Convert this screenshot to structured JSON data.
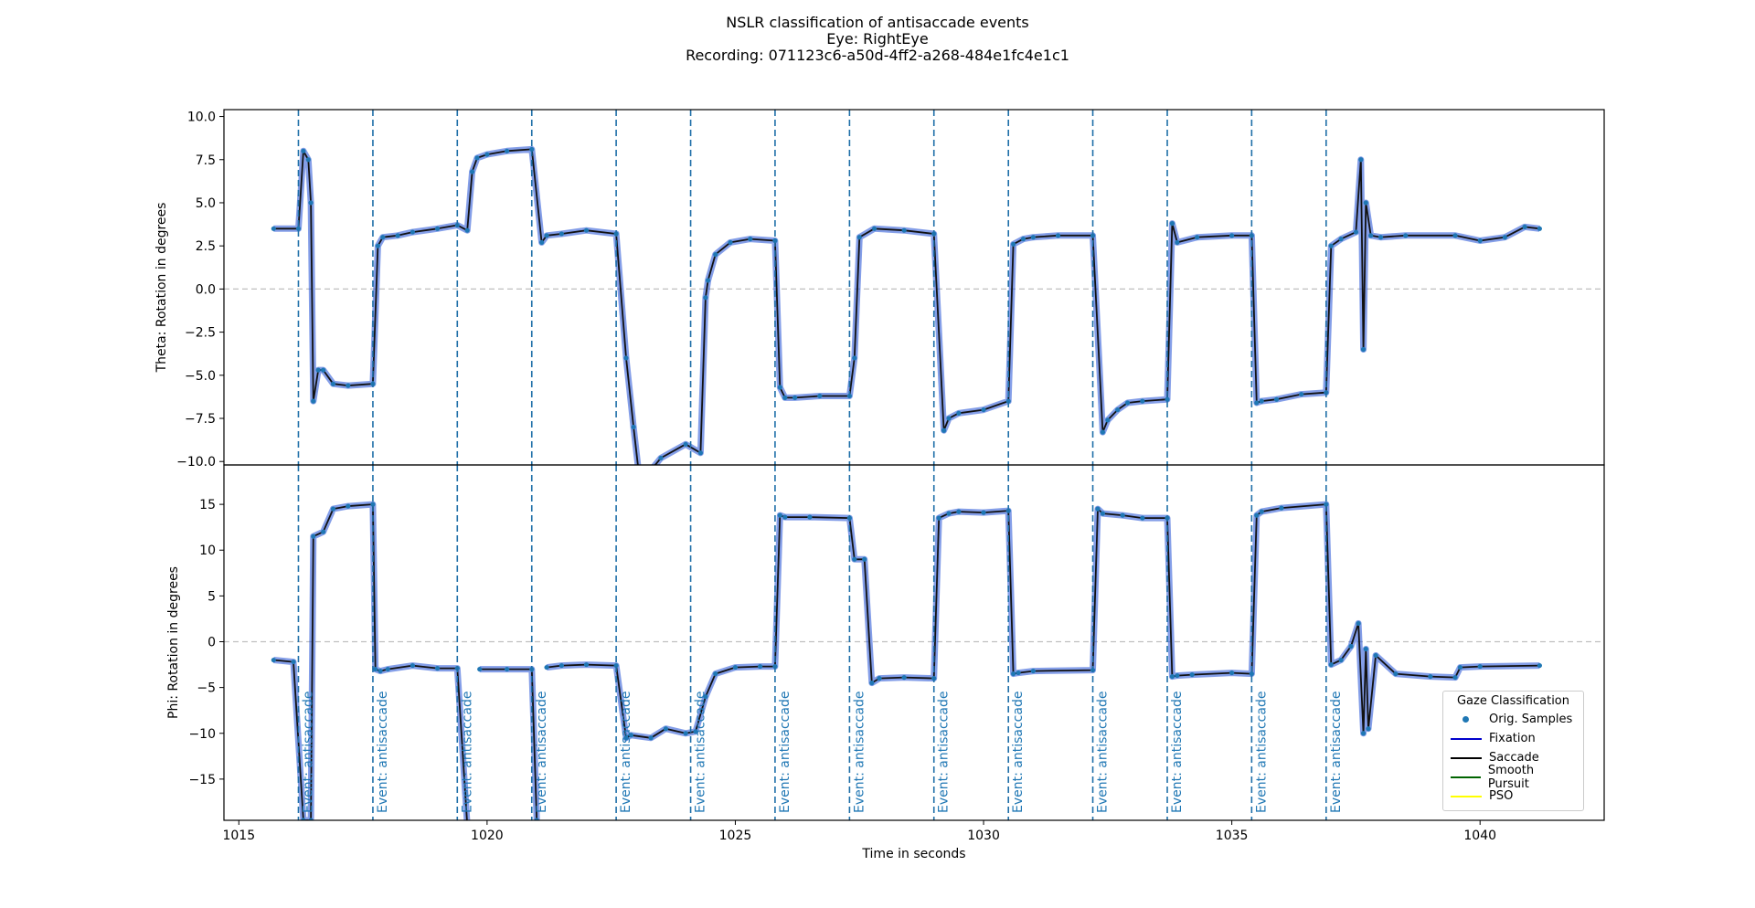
{
  "chart_data": {
    "type": "line",
    "title_lines": [
      "NSLR classification of antisaccade events",
      "Eye: RightEye",
      "Recording: 071123c6-a50d-4ff2-a268-484e1fc4e1c1"
    ],
    "xlabel": "Time in seconds",
    "xlim": [
      1014.7,
      1042.5
    ],
    "xticks": [
      1015,
      1020,
      1025,
      1030,
      1035,
      1040
    ],
    "grid": false,
    "legend": {
      "title": "Gaze Classification",
      "placement": "lower-right",
      "entries": [
        {
          "label": "Orig. Samples",
          "color": "#1f77b4",
          "marker": "dot"
        },
        {
          "label": "Fixation",
          "color": "#0000cc",
          "marker": "line"
        },
        {
          "label": "Saccade",
          "color": "#000000",
          "marker": "line"
        },
        {
          "label": "Smooth Pursuit",
          "color": "#006400",
          "marker": "line"
        },
        {
          "label": "PSO",
          "color": "#ffff00",
          "marker": "line"
        }
      ]
    },
    "event_label": "Event: antisaccade",
    "event_times": [
      1016.2,
      1017.7,
      1019.4,
      1020.9,
      1022.6,
      1024.1,
      1025.8,
      1027.3,
      1029.0,
      1030.5,
      1032.2,
      1033.7,
      1035.4,
      1036.9
    ],
    "panels": [
      {
        "ylabel": "Theta: Rotation in degrees",
        "ylim": [
          -10.2,
          10.4
        ],
        "yticks": [
          -10.0,
          -7.5,
          -5.0,
          -2.5,
          0.0,
          2.5,
          5.0,
          7.5,
          10.0
        ],
        "reference_line": 0.0,
        "series": [
          {
            "x": [
              1015.7,
              1016.2,
              1016.3,
              1016.4,
              1016.45,
              1016.5,
              1016.6,
              1016.7,
              1016.9,
              1017.2,
              1017.7,
              1017.8,
              1017.9,
              1018.2,
              1018.5,
              1019.0,
              1019.4,
              1019.6,
              1019.7,
              1019.8,
              1020.0,
              1020.4,
              1020.9,
              1021.1,
              1021.2,
              1021.5,
              1022.0,
              1022.6,
              1022.8,
              1022.95,
              1023.05,
              1023.3,
              1023.5,
              1024.0,
              1024.3,
              1024.4,
              1024.45,
              1024.6,
              1024.9,
              1025.3,
              1025.8,
              1025.9,
              1026.0,
              1026.2,
              1026.7,
              1027.3,
              1027.4,
              1027.5,
              1027.8,
              1028.4,
              1029.0,
              1029.2,
              1029.3,
              1029.5,
              1030.0,
              1030.5,
              1030.6,
              1030.8,
              1031.0,
              1031.5,
              1032.2,
              1032.4,
              1032.5,
              1032.7,
              1032.9,
              1033.2,
              1033.7,
              1033.8,
              1033.9,
              1034.3,
              1035.0,
              1035.4,
              1035.5,
              1035.6,
              1035.9,
              1036.4,
              1036.9,
              1037.0,
              1037.2,
              1037.5,
              1037.6,
              1037.65,
              1037.7,
              1037.8,
              1038.0,
              1038.5,
              1039.5,
              1040.0,
              1040.5,
              1040.9,
              1041.2
            ],
            "y": [
              3.5,
              3.5,
              8.0,
              7.5,
              5.0,
              -6.5,
              -4.7,
              -4.7,
              -5.5,
              -5.6,
              -5.5,
              2.5,
              3.0,
              3.1,
              3.3,
              3.5,
              3.7,
              3.4,
              6.8,
              7.6,
              7.8,
              8.0,
              8.1,
              2.7,
              3.1,
              3.2,
              3.4,
              3.2,
              -4.0,
              -8.0,
              -10.5,
              -10.5,
              -9.8,
              -9.0,
              -9.5,
              -0.5,
              0.5,
              2.0,
              2.7,
              2.9,
              2.8,
              -5.7,
              -6.3,
              -6.3,
              -6.2,
              -6.2,
              -4.0,
              3.0,
              3.5,
              3.4,
              3.2,
              -8.2,
              -7.5,
              -7.2,
              -7.0,
              -6.5,
              2.6,
              2.9,
              3.0,
              3.1,
              3.1,
              -8.3,
              -7.6,
              -7.0,
              -6.6,
              -6.5,
              -6.4,
              3.8,
              2.7,
              3.0,
              3.1,
              3.1,
              -6.6,
              -6.5,
              -6.4,
              -6.1,
              -6.0,
              2.5,
              2.9,
              3.3,
              7.5,
              -3.5,
              5.0,
              3.1,
              3.0,
              3.1,
              3.1,
              2.8,
              3.0,
              3.6,
              3.5
            ]
          }
        ]
      },
      {
        "ylabel": "Phi: Rotation in degrees",
        "ylim": [
          -19.5,
          19.3
        ],
        "yticks": [
          -15,
          -10,
          -5,
          0,
          5,
          10,
          15
        ],
        "reference_line": 0,
        "series": [
          {
            "x": [
              1015.7,
              1016.1,
              1016.3,
              1016.45,
              1016.5,
              1016.7,
              1016.9,
              1017.2,
              1017.7,
              1017.75,
              1017.85,
              1018.0,
              1018.5,
              1019.0,
              1019.4,
              1019.6,
              1019.7,
              1019.85,
              1020.4,
              1020.9,
              1021.0,
              1021.05,
              1021.2,
              1021.5,
              1022.0,
              1022.6,
              1022.8,
              1022.9,
              1023.3,
              1023.6,
              1024.0,
              1024.2,
              1024.4,
              1024.6,
              1025.0,
              1025.5,
              1025.8,
              1025.9,
              1026.0,
              1026.5,
              1027.3,
              1027.4,
              1027.6,
              1027.75,
              1027.9,
              1028.4,
              1029.0,
              1029.1,
              1029.3,
              1029.5,
              1030.0,
              1030.5,
              1030.6,
              1030.7,
              1031.0,
              1032.2,
              1032.3,
              1032.4,
              1032.8,
              1033.2,
              1033.7,
              1033.8,
              1033.9,
              1034.2,
              1035.0,
              1035.4,
              1035.5,
              1035.6,
              1036.0,
              1036.9,
              1037.0,
              1037.2,
              1037.4,
              1037.55,
              1037.65,
              1037.7,
              1037.75,
              1037.9,
              1038.3,
              1039.0,
              1039.5,
              1039.6,
              1040.0,
              1041.2
            ],
            "y": [
              -2.0,
              -2.2,
              -19.5,
              -19.5,
              11.5,
              12.0,
              14.5,
              14.8,
              15.0,
              -3.0,
              -3.2,
              -3.0,
              -2.6,
              -2.9,
              -2.9,
              -20.0,
              null,
              -3.0,
              -3.0,
              -3.0,
              -19.5,
              null,
              -2.8,
              -2.6,
              -2.5,
              -2.6,
              -10.5,
              -10.2,
              -10.5,
              -9.5,
              -10.0,
              -9.8,
              -6.0,
              -3.5,
              -2.8,
              -2.7,
              -2.7,
              13.8,
              13.6,
              13.6,
              13.5,
              9.0,
              9.0,
              -4.5,
              -4.0,
              -3.9,
              -4.0,
              13.5,
              14.0,
              14.2,
              14.1,
              14.3,
              -3.5,
              -3.4,
              -3.2,
              -3.1,
              14.5,
              14.0,
              13.8,
              13.5,
              13.5,
              -3.8,
              -3.7,
              -3.6,
              -3.4,
              -3.5,
              13.8,
              14.2,
              14.6,
              15.0,
              -2.5,
              -2.0,
              -0.5,
              2.0,
              -10.0,
              -0.8,
              -9.5,
              -1.5,
              -3.5,
              -3.8,
              -3.9,
              -2.8,
              -2.7,
              -2.6
            ]
          }
        ]
      }
    ]
  }
}
